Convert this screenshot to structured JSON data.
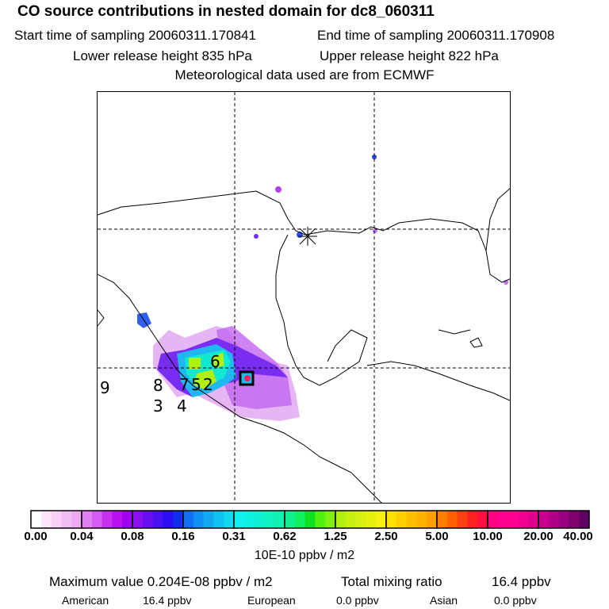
{
  "title": "CO  source contributions in nested domain for dc8_060311",
  "start_time": "Start time of sampling 20060311.170841",
  "end_time": "End time of sampling 20060311.170908",
  "lower_release": "Lower release height  835 hPa",
  "upper_release": "Upper release height  822 hPa",
  "met_data": "Meteorological data used are from ECMWF",
  "chart_data": {
    "type": "heatmap",
    "title": "CO  source contributions in nested domain for dc8_060311",
    "colorbar_ticks": [
      "0.00",
      "0.04",
      "0.08",
      "0.16",
      "0.31",
      "0.62",
      "1.25",
      "2.50",
      "5.00",
      "10.00",
      "20.00",
      "40.00"
    ],
    "colorbar_unit": "10E-10 ppbv / m2",
    "colorbar_colors": [
      [
        "#ffffff",
        "#fbe6fb",
        "#f6d0f6",
        "#f2bdf4",
        "#eeaaf2"
      ],
      [
        "#e080f0",
        "#d55cf0",
        "#c830f0",
        "#b810f0",
        "#a000f0"
      ],
      [
        "#8a10f0",
        "#6a10f0",
        "#4a10f0",
        "#2a10f0",
        "#1030f0"
      ],
      [
        "#1070f0",
        "#1090f0",
        "#10a8f0",
        "#10c0f0",
        "#10d8f0"
      ],
      [
        "#10f0f0",
        "#10f0e0",
        "#10f0d0",
        "#10f0c0",
        "#10f0b0"
      ],
      [
        "#10f090",
        "#10f060",
        "#10e020",
        "#50f010",
        "#80f010"
      ],
      [
        "#b0f010",
        "#c8f010",
        "#d8f010",
        "#e8f010",
        "#f8f010"
      ],
      [
        "#ffe000",
        "#ffd000",
        "#ffc000",
        "#ffb000",
        "#ffa000"
      ],
      [
        "#ff8000",
        "#ff6000",
        "#ff4010",
        "#ff2020",
        "#ff1040"
      ],
      [
        "#ff0080",
        "#ff0090",
        "#ff0090",
        "#f00090",
        "#e00090"
      ],
      [
        "#c80090",
        "#b00088",
        "#980080",
        "#800070",
        "#600060"
      ]
    ],
    "map_labels": [
      "9",
      "8",
      "3",
      "4",
      "7",
      "5",
      "2",
      "6"
    ]
  },
  "stats": {
    "max_value": "Maximum value  0.204E-08 ppbv / m2",
    "total_label": "Total mixing ratio",
    "total_value": "16.4 ppbv",
    "american_label": "American",
    "american_value": "16.4 ppbv",
    "european_label": "European",
    "european_value": "0.0 ppbv",
    "asian_label": "Asian",
    "asian_value": "0.0 ppbv"
  }
}
